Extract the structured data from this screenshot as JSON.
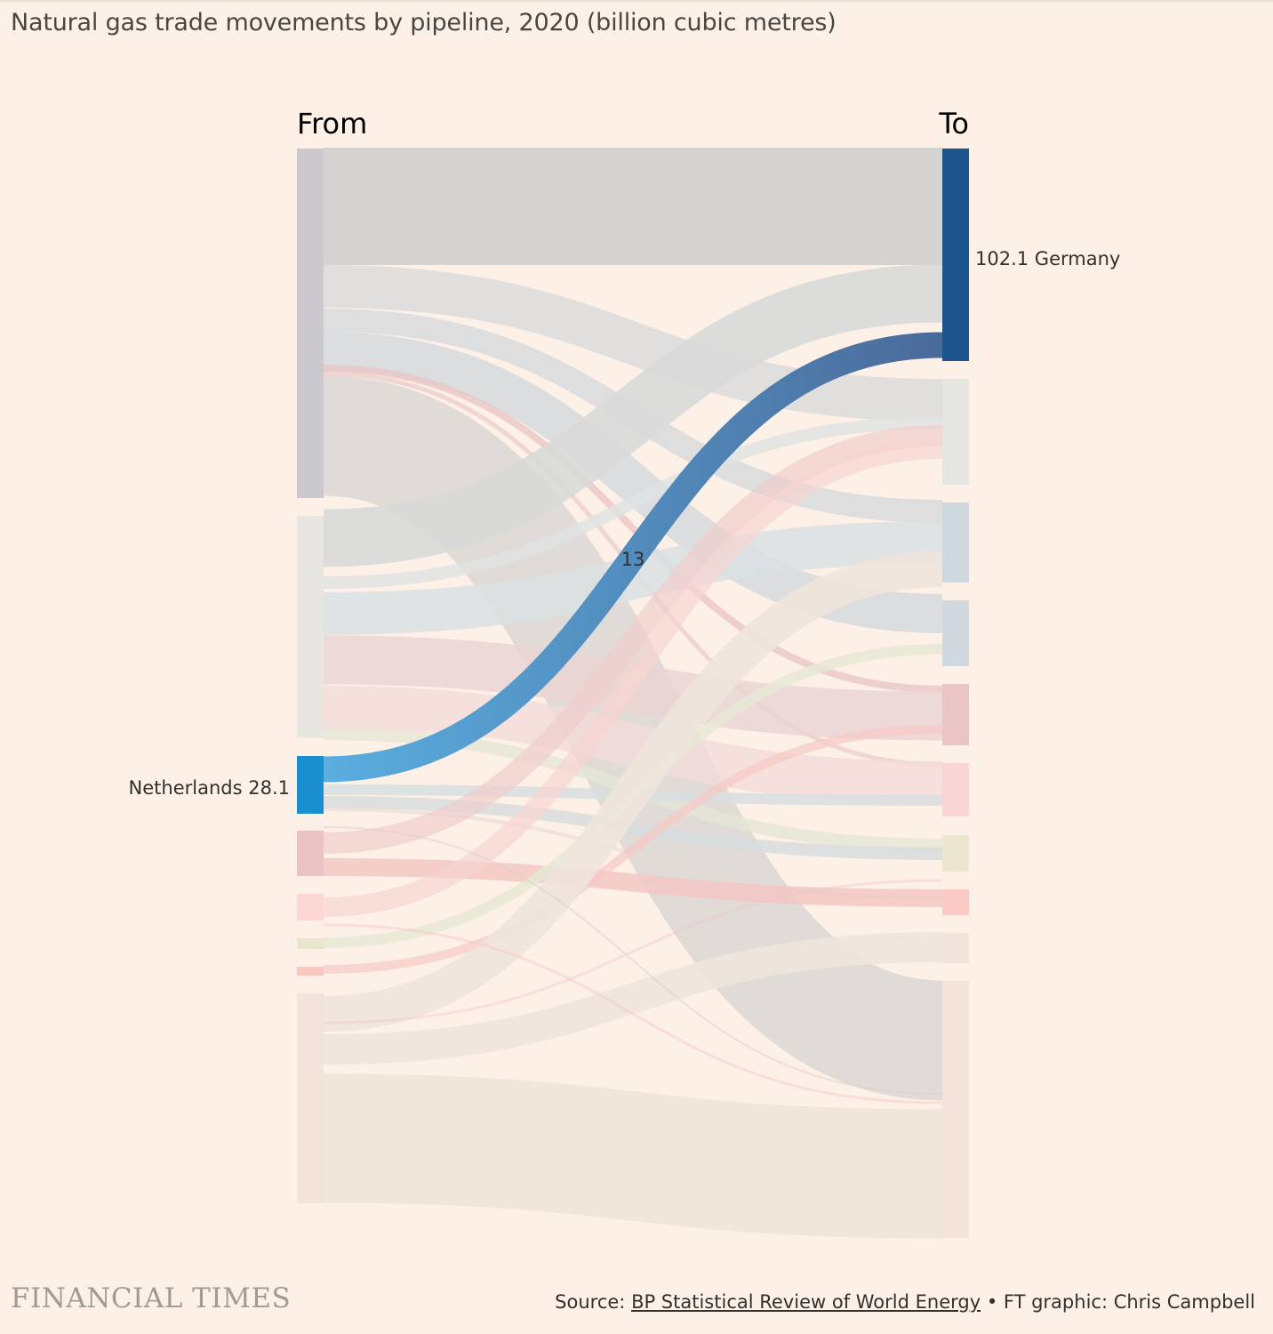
{
  "title": "Natural gas trade movements by pipeline, 2020 (billion cubic metres)",
  "colors": {
    "background": "#fdf0e6",
    "netherlands": "#1a8fcf",
    "germany": "#1b558c",
    "highlight_flow_start": "#5aaee0",
    "highlight_flow_end": "#4a6a9a"
  },
  "chart_data": {
    "type": "sankey",
    "columns": {
      "left": "From",
      "right": "To"
    },
    "highlighted_source": {
      "name": "Netherlands",
      "value": 28.1,
      "label": "Netherlands 28.1"
    },
    "highlighted_target": {
      "name": "Germany",
      "value": 102.1,
      "label": "102.1 Germany"
    },
    "highlighted_flow": {
      "from": "Netherlands",
      "to": "Germany",
      "value": 13,
      "label": "13"
    }
  },
  "footer": {
    "brand": "FINANCIAL TIMES",
    "source_prefix": "Source: ",
    "source_link": "BP Statistical Review of World Energy",
    "source_suffix": " • FT graphic: Chris Campbell"
  }
}
